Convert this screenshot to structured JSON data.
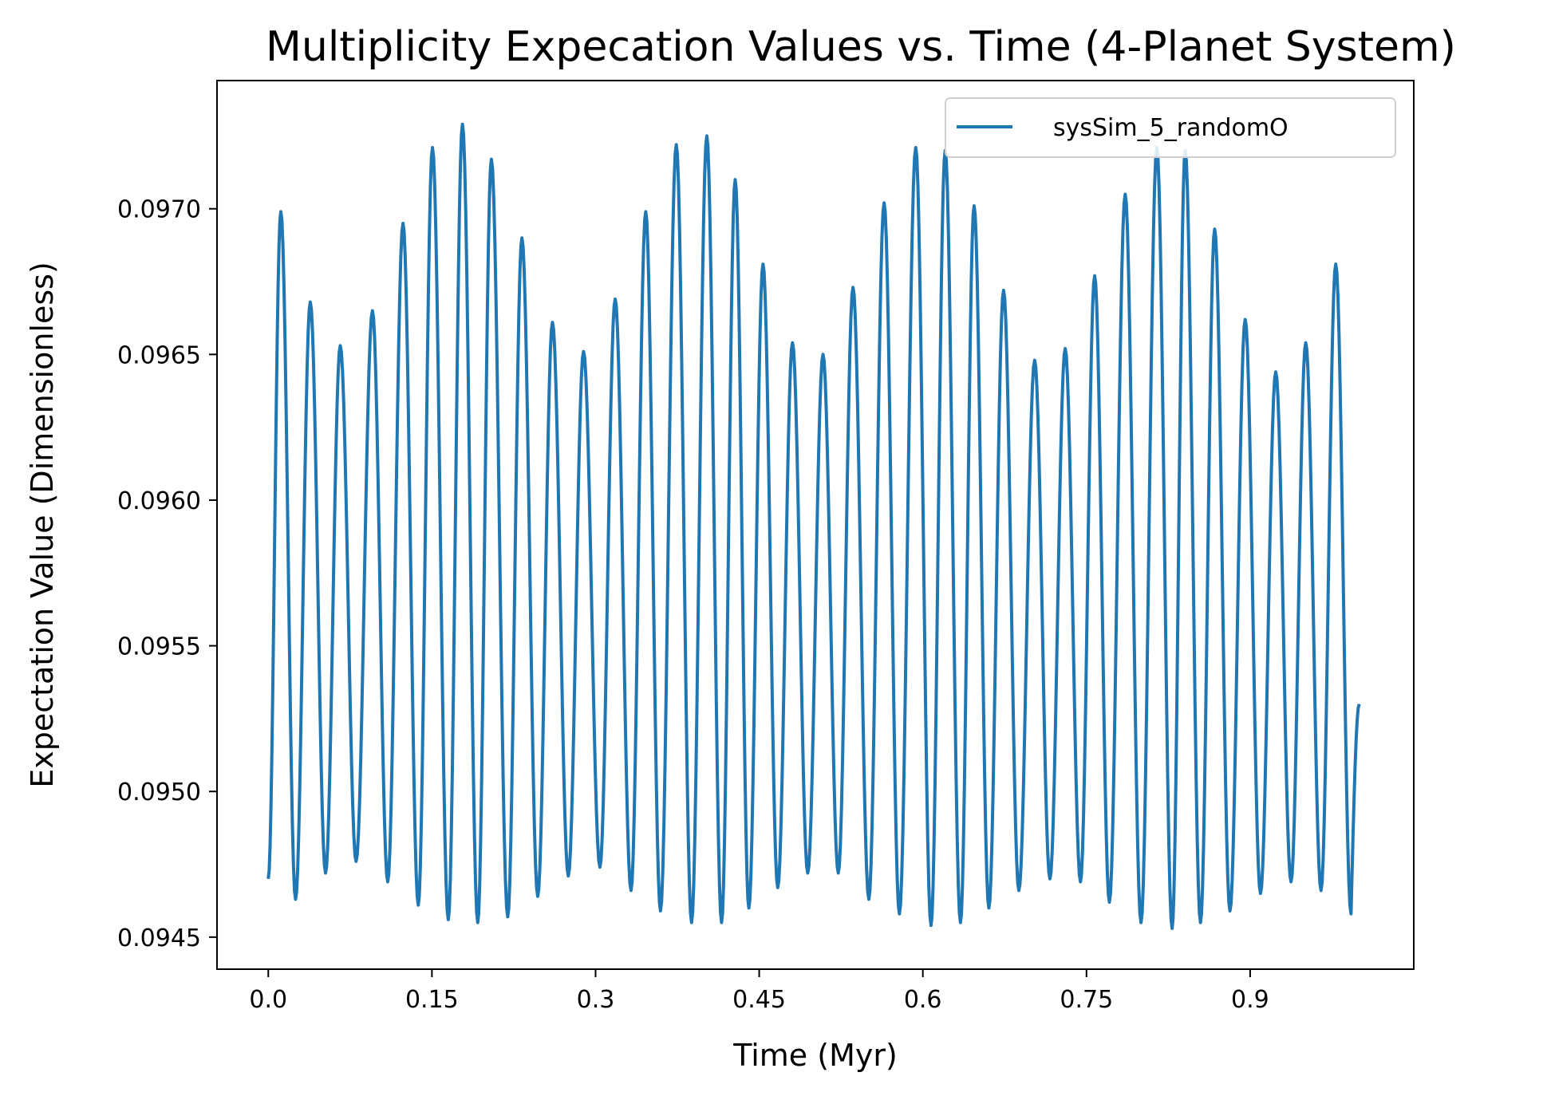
{
  "chart_data": {
    "type": "line",
    "title": "Multiplicity Expecation Values vs. Time (4-Planet System)",
    "xlabel": "Time (Myr)",
    "ylabel": "Expectation Value (Dimensionless)",
    "xlim": [
      -0.047,
      1.05
    ],
    "ylim": [
      0.09439,
      0.09744
    ],
    "xticks": [
      0.0,
      0.15,
      0.3,
      0.45,
      0.6,
      0.75,
      0.9
    ],
    "xtick_labels": [
      "0.0",
      "0.15",
      "0.3",
      "0.45",
      "0.6",
      "0.75",
      "0.9"
    ],
    "yticks": [
      0.0945,
      0.095,
      0.0955,
      0.096,
      0.0965,
      0.097
    ],
    "ytick_labels": [
      "0.0945",
      "0.0950",
      "0.0955",
      "0.0960",
      "0.0965",
      "0.0970"
    ],
    "grid": false,
    "legend_position": "top-right",
    "series": [
      {
        "name": "sysSim_5_randomO",
        "color": "#1f77b4",
        "x_start": 0.0,
        "x_end": 1.0,
        "start_value": 0.0947,
        "end_value": 0.0953,
        "peaks": [
          [
            0.0115,
            0.09699
          ],
          [
            0.0385,
            0.09668
          ],
          [
            0.066,
            0.09653
          ],
          [
            0.0955,
            0.09665
          ],
          [
            0.1235,
            0.09695
          ],
          [
            0.1505,
            0.09721
          ],
          [
            0.178,
            0.09729
          ],
          [
            0.2045,
            0.09717
          ],
          [
            0.2325,
            0.0969
          ],
          [
            0.2605,
            0.09661
          ],
          [
            0.289,
            0.09651
          ],
          [
            0.318,
            0.09669
          ],
          [
            0.346,
            0.09699
          ],
          [
            0.374,
            0.09722
          ],
          [
            0.402,
            0.09725
          ],
          [
            0.428,
            0.0971
          ],
          [
            0.4535,
            0.09681
          ],
          [
            0.4805,
            0.09654
          ],
          [
            0.5085,
            0.0965
          ],
          [
            0.536,
            0.09673
          ],
          [
            0.5645,
            0.09702
          ],
          [
            0.5935,
            0.09721
          ],
          [
            0.6205,
            0.0972
          ],
          [
            0.647,
            0.09701
          ],
          [
            0.674,
            0.09672
          ],
          [
            0.7025,
            0.09648
          ],
          [
            0.7305,
            0.09652
          ],
          [
            0.7575,
            0.09677
          ],
          [
            0.7855,
            0.09705
          ],
          [
            0.8145,
            0.09721
          ],
          [
            0.8405,
            0.0972
          ],
          [
            0.8675,
            0.09693
          ],
          [
            0.8955,
            0.09662
          ],
          [
            0.9235,
            0.09644
          ],
          [
            0.951,
            0.09654
          ],
          [
            0.9785,
            0.09681
          ]
        ],
        "troughs": [
          [
            0.025,
            0.09463
          ],
          [
            0.0525,
            0.09472
          ],
          [
            0.0805,
            0.09476
          ],
          [
            0.1095,
            0.09469
          ],
          [
            0.1375,
            0.09461
          ],
          [
            0.165,
            0.09456
          ],
          [
            0.192,
            0.09455
          ],
          [
            0.2195,
            0.09457
          ],
          [
            0.247,
            0.09464
          ],
          [
            0.275,
            0.09471
          ],
          [
            0.304,
            0.09474
          ],
          [
            0.3325,
            0.09466
          ],
          [
            0.3595,
            0.09459
          ],
          [
            0.388,
            0.09455
          ],
          [
            0.4155,
            0.09455
          ],
          [
            0.4405,
            0.0946
          ],
          [
            0.467,
            0.09467
          ],
          [
            0.4945,
            0.09472
          ],
          [
            0.5225,
            0.09472
          ],
          [
            0.5505,
            0.09463
          ],
          [
            0.5785,
            0.09458
          ],
          [
            0.6075,
            0.09454
          ],
          [
            0.6345,
            0.09455
          ],
          [
            0.6605,
            0.0946
          ],
          [
            0.688,
            0.09466
          ],
          [
            0.7165,
            0.0947
          ],
          [
            0.7445,
            0.09469
          ],
          [
            0.771,
            0.09462
          ],
          [
            0.8,
            0.09455
          ],
          [
            0.8285,
            0.09453
          ],
          [
            0.8545,
            0.09455
          ],
          [
            0.8815,
            0.09459
          ],
          [
            0.9095,
            0.09465
          ],
          [
            0.9375,
            0.09469
          ],
          [
            0.965,
            0.09466
          ],
          [
            0.9925,
            0.09458
          ]
        ]
      }
    ]
  }
}
